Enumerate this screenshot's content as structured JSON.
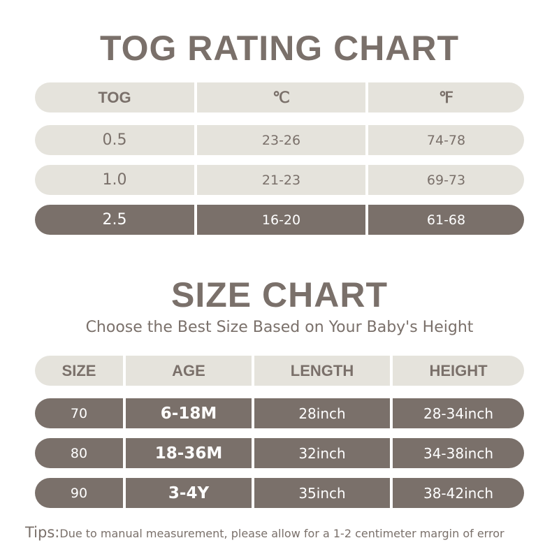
{
  "tog_chart": {
    "title": "TOG RATING CHART",
    "headers": [
      "TOG",
      "℃",
      "℉"
    ],
    "rows": [
      [
        "0.5",
        "23-26",
        "74-78"
      ],
      [
        "1.0",
        "21-23",
        "69-73"
      ],
      [
        "2.5",
        "16-20",
        "61-68"
      ]
    ],
    "highlight_color": "#7a706a",
    "light_color": "#e5e3dc"
  },
  "size_chart": {
    "title": "SIZE CHART",
    "subtitle": "Choose the Best Size Based on Your Baby's Height",
    "headers": [
      "SIZE",
      "AGE",
      "LENGTH",
      "HEIGHT"
    ],
    "rows": [
      [
        "70",
        "6-18M",
        "28inch",
        "28-34inch"
      ],
      [
        "80",
        "18-36M",
        "32inch",
        "34-38inch"
      ],
      [
        "90",
        "3-4Y",
        "35inch",
        "38-42inch"
      ]
    ]
  },
  "tips": {
    "label": "Tips:",
    "text": "Due to manual measurement, please allow for a 1-2 centimeter margin of error"
  }
}
